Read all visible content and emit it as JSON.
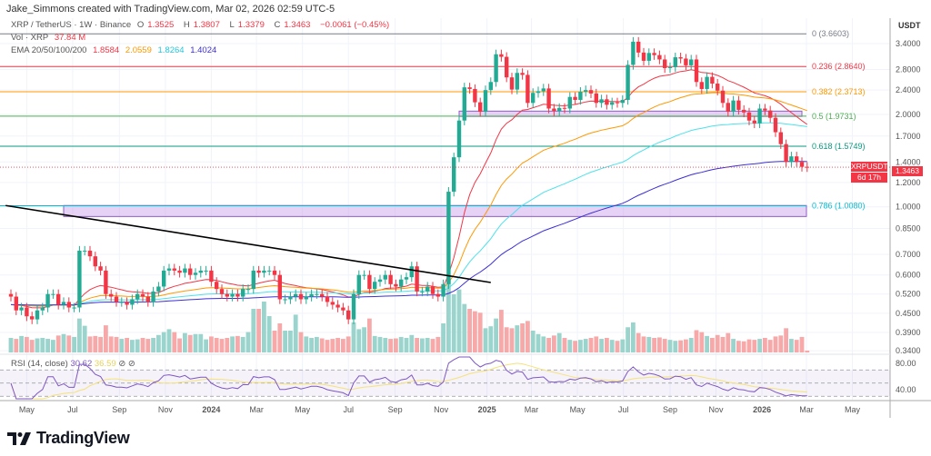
{
  "author_line": "Jake_Simmons created with TradingView.com, Mar 02, 2026 02:59 UTC-5",
  "symbol_line": {
    "symbol": "XRP / TetherUS · 1W · Binance",
    "open_label": "O",
    "open": "1.3525",
    "high_label": "H",
    "high": "1.3807",
    "low_label": "L",
    "low": "1.3379",
    "close_label": "C",
    "close": "1.3463",
    "change": "−0.0061 (−0.45%)"
  },
  "volume_legend": {
    "label": "Vol · XRP",
    "value": "37.84 M"
  },
  "ema_legend": {
    "label": "EMA 20/50/100/200",
    "values": [
      "1.8584",
      "2.0559",
      "1.8264",
      "1.4024"
    ]
  },
  "rsi_legend": {
    "label": "RSI (14, close)",
    "value": "30.62",
    "ma_value": "36.59",
    "icons": "⊘ ⊘"
  },
  "price_tag": {
    "symbol": "XRPUSDT",
    "price": "1.3463",
    "countdown": "6d 17h"
  },
  "axis_currency": "USDT",
  "logo_text": "TradingView",
  "colors": {
    "up": "#22ab94",
    "down": "#f23645",
    "vol_up": "#9ad4cc",
    "vol_down": "#f7a9a9",
    "ema": [
      "#f23645",
      "#ff9800",
      "#4ee1ec",
      "#3d2fd6"
    ],
    "rsi": "#7e57c2",
    "rsi_ma": "#f5e27a",
    "box": "#c89ce6"
  },
  "chart_data": {
    "type": "candlestick",
    "interval": "1W",
    "first_week": "2023-04-10",
    "closes": [
      0.51,
      0.46,
      0.47,
      0.44,
      0.43,
      0.46,
      0.47,
      0.52,
      0.52,
      0.48,
      0.49,
      0.47,
      0.47,
      0.72,
      0.72,
      0.69,
      0.64,
      0.62,
      0.52,
      0.51,
      0.49,
      0.49,
      0.48,
      0.5,
      0.52,
      0.51,
      0.49,
      0.53,
      0.55,
      0.62,
      0.63,
      0.62,
      0.61,
      0.63,
      0.6,
      0.61,
      0.62,
      0.62,
      0.57,
      0.54,
      0.52,
      0.51,
      0.52,
      0.51,
      0.54,
      0.54,
      0.62,
      0.61,
      0.62,
      0.62,
      0.6,
      0.5,
      0.5,
      0.51,
      0.52,
      0.5,
      0.51,
      0.52,
      0.52,
      0.51,
      0.49,
      0.48,
      0.47,
      0.46,
      0.43,
      0.52,
      0.6,
      0.6,
      0.54,
      0.57,
      0.58,
      0.6,
      0.56,
      0.55,
      0.58,
      0.59,
      0.64,
      0.53,
      0.53,
      0.55,
      0.52,
      0.51,
      0.56,
      1.12,
      1.45,
      1.91,
      2.45,
      2.42,
      2.19,
      2.04,
      2.4,
      2.55,
      3.14,
      3.08,
      2.64,
      2.41,
      2.73,
      2.69,
      2.18,
      2.35,
      2.38,
      2.43,
      2.09,
      2.05,
      2.1,
      2.09,
      2.28,
      2.23,
      2.37,
      2.4,
      2.34,
      2.18,
      2.24,
      2.15,
      2.19,
      2.18,
      2.23,
      2.9,
      3.45,
      3.18,
      2.99,
      3.17,
      3.12,
      3.02,
      2.83,
      2.85,
      3.07,
      3.04,
      2.89,
      3.02,
      2.55,
      2.42,
      2.65,
      2.52,
      2.39,
      2.18,
      2.04,
      2.22,
      2.07,
      2.03,
      1.91,
      1.87,
      2.09,
      2.06,
      1.95,
      1.75,
      1.6,
      1.4,
      1.46,
      1.4,
      1.35,
      1.3463
    ],
    "volumes_m": [
      300,
      280,
      340,
      320,
      260,
      290,
      300,
      280,
      260,
      350,
      380,
      350,
      320,
      700,
      550,
      330,
      340,
      320,
      560,
      330,
      320,
      280,
      300,
      260,
      270,
      300,
      280,
      300,
      360,
      420,
      480,
      420,
      290,
      400,
      360,
      380,
      380,
      270,
      330,
      300,
      280,
      300,
      330,
      340,
      320,
      420,
      900,
      900,
      1050,
      750,
      450,
      600,
      450,
      450,
      780,
      420,
      330,
      300,
      320,
      290,
      260,
      280,
      300,
      280,
      330,
      620,
      480,
      520,
      700,
      340,
      320,
      300,
      280,
      290,
      320,
      300,
      360,
      300,
      290,
      300,
      280,
      320,
      600,
      1500,
      1200,
      1300,
      1000,
      900,
      850,
      820,
      500,
      540,
      700,
      880,
      520,
      500,
      560,
      600,
      650,
      450,
      380,
      330,
      300,
      350,
      400,
      300,
      260,
      240,
      260,
      280,
      300,
      330,
      280,
      300,
      260,
      240,
      270,
      520,
      620,
      400,
      330,
      320,
      300,
      310,
      280,
      260,
      240,
      250,
      270,
      300,
      460,
      420,
      340,
      300,
      360,
      320,
      400,
      280,
      240,
      230,
      270,
      260,
      280,
      300,
      260,
      330,
      350,
      500,
      280,
      260,
      320,
      37.84
    ],
    "price_scale": "log",
    "price_ticks": [
      {
        "value": 3.4,
        "label": "3.4000"
      },
      {
        "value": 2.8,
        "label": "2.8000"
      },
      {
        "value": 2.4,
        "label": "2.4000"
      },
      {
        "value": 2.0,
        "label": "2.0000"
      },
      {
        "value": 1.7,
        "label": "1.7000"
      },
      {
        "value": 1.4,
        "label": "1.4000"
      },
      {
        "value": 1.2,
        "label": "1.2000"
      },
      {
        "value": 1.0,
        "label": "1.0000"
      },
      {
        "value": 0.85,
        "label": "0.8500"
      },
      {
        "value": 0.7,
        "label": "0.7000"
      },
      {
        "value": 0.6,
        "label": "0.6000"
      },
      {
        "value": 0.52,
        "label": "0.5200"
      },
      {
        "value": 0.45,
        "label": "0.4500"
      },
      {
        "value": 0.39,
        "label": "0.3900"
      },
      {
        "value": 0.34,
        "label": "0.3400"
      }
    ],
    "time_ticks": [
      {
        "label": "May",
        "date": "2023-05-01"
      },
      {
        "label": "Jul",
        "date": "2023-07-01"
      },
      {
        "label": "Sep",
        "date": "2023-09-01"
      },
      {
        "label": "Nov",
        "date": "2023-11-01"
      },
      {
        "label": "2024",
        "date": "2024-01-01",
        "bold": true
      },
      {
        "label": "Mar",
        "date": "2024-03-01"
      },
      {
        "label": "May",
        "date": "2024-05-01"
      },
      {
        "label": "Jul",
        "date": "2024-07-01"
      },
      {
        "label": "Sep",
        "date": "2024-09-01"
      },
      {
        "label": "Nov",
        "date": "2024-11-01"
      },
      {
        "label": "2025",
        "date": "2025-01-01",
        "bold": true
      },
      {
        "label": "Mar",
        "date": "2025-03-01"
      },
      {
        "label": "May",
        "date": "2025-05-01"
      },
      {
        "label": "Jul",
        "date": "2025-07-01"
      },
      {
        "label": "Sep",
        "date": "2025-09-01"
      },
      {
        "label": "Nov",
        "date": "2025-11-01"
      },
      {
        "label": "2026",
        "date": "2026-01-01",
        "bold": true
      },
      {
        "label": "Mar",
        "date": "2026-03-01"
      },
      {
        "label": "May",
        "date": "2026-05-01"
      }
    ],
    "fib_levels": [
      {
        "ratio": 0,
        "price": 3.6603,
        "label": "0 (3.6603)",
        "color": "#787b86"
      },
      {
        "ratio": 0.236,
        "price": 2.864,
        "label": "0.236 (2.8640)",
        "color": "#f23645"
      },
      {
        "ratio": 0.382,
        "price": 2.3713,
        "label": "0.382 (2.3713)",
        "color": "#ff9800"
      },
      {
        "ratio": 0.5,
        "price": 1.9731,
        "label": "0.5 (1.9731)",
        "color": "#4caf50"
      },
      {
        "ratio": 0.618,
        "price": 1.5749,
        "label": "0.618 (1.5749)",
        "color": "#089981"
      },
      {
        "ratio": 0.786,
        "price": 1.008,
        "label": "0.786 (1.0080)",
        "color": "#00bcd4"
      }
    ],
    "zones": [
      {
        "from": "2023-06-19",
        "to": "2026-03-09",
        "top": 1.01,
        "bottom": 0.93
      },
      {
        "from": "2024-11-25",
        "to": "2026-02-23",
        "top": 2.05,
        "bottom": 1.97
      }
    ],
    "trendline": {
      "from": {
        "date": "2023-04-03",
        "price": 1.01
      },
      "to": {
        "date": "2025-01-06",
        "price": 0.567
      }
    },
    "ema_periods": [
      20,
      50,
      100,
      200
    ],
    "rsi": {
      "period": 14,
      "ticks": [
        {
          "value": 80,
          "label": "80.00"
        },
        {
          "value": 40,
          "label": "40.00"
        }
      ],
      "bands": [
        70,
        50,
        30
      ]
    }
  }
}
